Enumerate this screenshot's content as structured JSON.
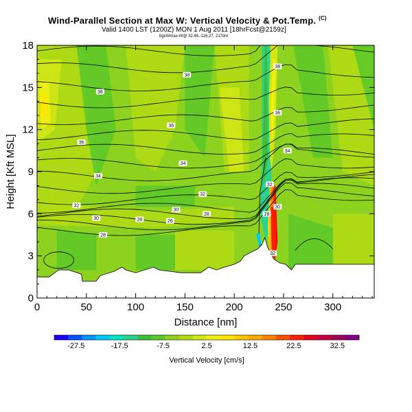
{
  "chart_data": {
    "type": "heatmap",
    "title": "Wind-Parallel Section at Max W: Vertical Velocity & Pot.Temp.",
    "title_mark": "(C)",
    "subtitle": "Valid 1400 LST (1200Z) MON 1 Aug 2011 [18hrFcst@2159z]",
    "subtitle2": "bgxWmax-W@ 32.46,-116.27, 217dm",
    "xlabel": "Distance [nm]",
    "ylabel": "Height [Kft MSL]",
    "xlim": [
      0,
      342
    ],
    "ylim": [
      0,
      18
    ],
    "x_ticks": [
      0,
      50,
      100,
      150,
      200,
      250,
      300
    ],
    "y_ticks": [
      0,
      3,
      6,
      9,
      12,
      15,
      18
    ],
    "colorbar": {
      "label": "Vertical Velocity [cm/s]",
      "range": [
        -32.5,
        37.5
      ],
      "tick_values": [
        -27.5,
        -17.5,
        -7.5,
        2.5,
        12.5,
        22.5,
        32.5
      ],
      "tick_labels": [
        "-27.5",
        "-17.5",
        "-7.5",
        "2.5",
        "12.5",
        "22.5",
        "32.5"
      ],
      "colors": [
        "#1e00ff",
        "#0050ff",
        "#0096ff",
        "#00c8ff",
        "#00e6c8",
        "#2dd28c",
        "#3cbe3c",
        "#5ac828",
        "#8cd21e",
        "#b4dc14",
        "#d2e614",
        "#f0f014",
        "#ffe600",
        "#ffc800",
        "#ffaa00",
        "#ff8200",
        "#ff5000",
        "#ff1e00",
        "#e6001e",
        "#c80046",
        "#a0005a",
        "#820082"
      ]
    },
    "terrain": {
      "distance_nm": [
        0,
        12,
        22,
        32,
        45,
        46,
        60,
        64,
        78,
        86,
        90,
        100,
        118,
        124,
        146,
        154,
        166,
        174,
        182,
        190,
        200,
        206,
        210,
        218,
        224,
        228,
        231,
        234,
        240,
        246,
        252,
        258,
        262,
        282,
        290,
        342
      ],
      "height_kft": [
        1.5,
        1.5,
        2.0,
        2.0,
        1.7,
        1.2,
        1.2,
        1.6,
        1.9,
        2.2,
        2.0,
        1.8,
        2.2,
        2.0,
        1.8,
        1.8,
        1.8,
        2.2,
        2.0,
        2.2,
        2.4,
        2.6,
        3.0,
        3.3,
        3.5,
        3.8,
        4.3,
        3.6,
        2.8,
        2.5,
        2.4,
        2.0,
        2.4,
        2.4,
        2.4,
        2.4
      ]
    },
    "theta_contour_labels": [
      {
        "value": "38",
        "x_nm": 64,
        "z_kft": 14.7
      },
      {
        "value": "38",
        "x_nm": 152,
        "z_kft": 15.9
      },
      {
        "value": "38",
        "x_nm": 244,
        "z_kft": 16.5
      },
      {
        "value": "36",
        "x_nm": 45,
        "z_kft": 11.1
      },
      {
        "value": "36",
        "x_nm": 136,
        "z_kft": 12.3
      },
      {
        "value": "36",
        "x_nm": 244,
        "z_kft": 13.2
      },
      {
        "value": "34",
        "x_nm": 62,
        "z_kft": 8.7
      },
      {
        "value": "34",
        "x_nm": 148,
        "z_kft": 9.6
      },
      {
        "value": "34",
        "x_nm": 254,
        "z_kft": 10.5
      },
      {
        "value": "32",
        "x_nm": 40,
        "z_kft": 6.6
      },
      {
        "value": "32",
        "x_nm": 168,
        "z_kft": 7.4
      },
      {
        "value": "32",
        "x_nm": 236,
        "z_kft": 8.1
      },
      {
        "value": "30",
        "x_nm": 60,
        "z_kft": 5.7
      },
      {
        "value": "30",
        "x_nm": 141,
        "z_kft": 6.3
      },
      {
        "value": "30",
        "x_nm": 244,
        "z_kft": 6.5
      },
      {
        "value": "28",
        "x_nm": 104,
        "z_kft": 5.6
      },
      {
        "value": "28",
        "x_nm": 172,
        "z_kft": 6.0
      },
      {
        "value": "28",
        "x_nm": 233,
        "z_kft": 6.0
      },
      {
        "value": "28",
        "x_nm": 67,
        "z_kft": 4.5
      },
      {
        "value": "26",
        "x_nm": 135,
        "z_kft": 5.5
      },
      {
        "value": "32",
        "x_nm": 239,
        "z_kft": 3.2
      }
    ]
  }
}
